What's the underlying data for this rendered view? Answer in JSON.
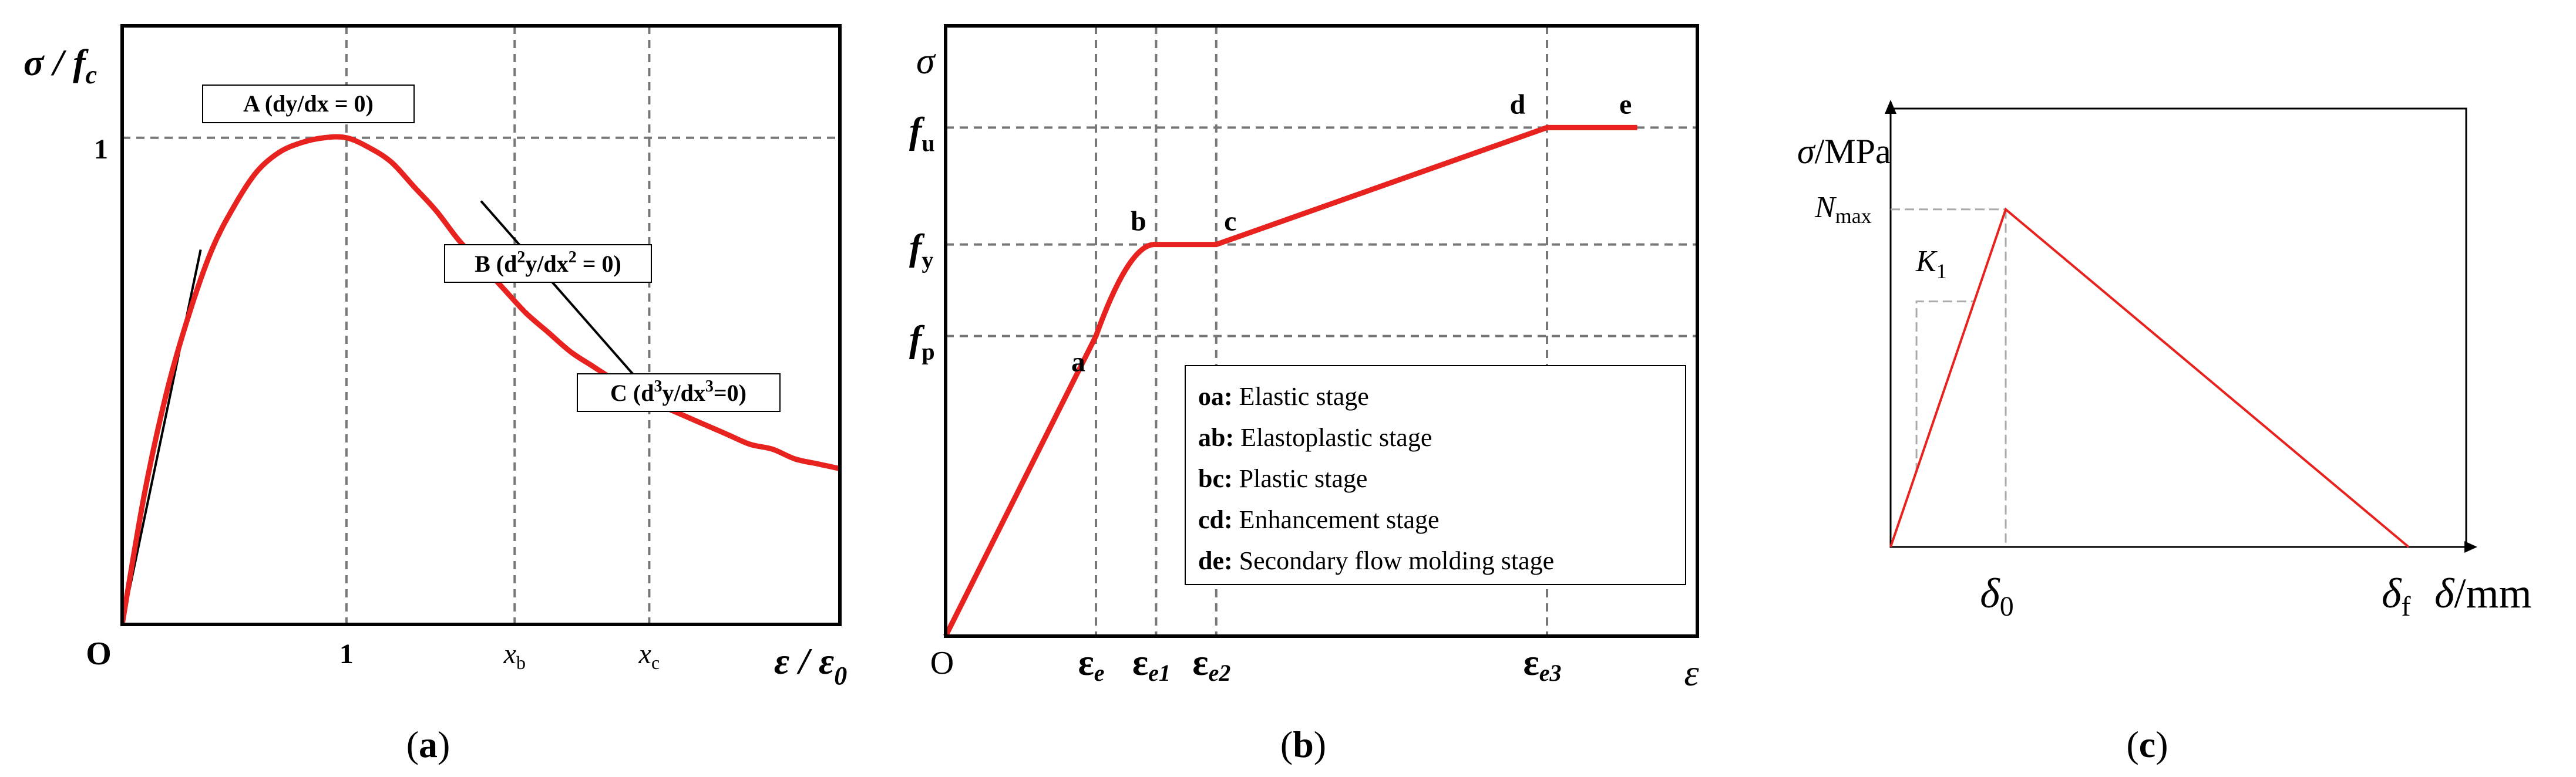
{
  "chart_data": [
    {
      "panel": "a",
      "type": "line",
      "caption": "(a)",
      "ylabel": "σ / f",
      "ylabel_sub": "c",
      "xlabel": "ε / ε",
      "xlabel_sub": "0",
      "origin_label": "O",
      "y_tick": "1",
      "x_ticks": [
        {
          "label": "1",
          "sub": "",
          "x": 1.0
        },
        {
          "label": "x",
          "sub": "b",
          "x": 1.75
        },
        {
          "label": "x",
          "sub": "c",
          "x": 2.35
        }
      ],
      "xlim": [
        0,
        3.2
      ],
      "ylim": [
        0,
        1.23
      ],
      "curve": {
        "x": [
          0,
          0.1,
          0.2,
          0.3,
          0.4,
          0.5,
          0.6,
          0.7,
          0.8,
          0.9,
          1.0,
          1.1,
          1.2,
          1.3,
          1.4,
          1.5,
          1.6,
          1.7,
          1.8,
          1.9,
          2.0,
          2.1,
          2.2,
          2.3,
          2.4,
          2.5,
          2.6,
          2.7,
          2.8,
          2.9,
          3.0,
          3.1,
          3.2
        ],
        "y": [
          0,
          0.27,
          0.48,
          0.64,
          0.77,
          0.86,
          0.93,
          0.97,
          0.99,
          1.0,
          1.0,
          0.98,
          0.95,
          0.9,
          0.85,
          0.79,
          0.74,
          0.69,
          0.64,
          0.6,
          0.56,
          0.53,
          0.5,
          0.47,
          0.45,
          0.43,
          0.41,
          0.39,
          0.37,
          0.36,
          0.34,
          0.33,
          0.32
        ]
      },
      "tangents": [
        {
          "x": [
            0,
            0.35
          ],
          "y": [
            0,
            0.77
          ]
        },
        {
          "x": [
            1.6,
            2.4
          ],
          "y": [
            0.87,
            0.45
          ]
        }
      ],
      "hlines": [
        1.0
      ],
      "vlines": [
        1.0,
        1.75,
        2.35
      ],
      "annotations": [
        {
          "main": "A (dy/dx = 0)",
          "x": 1.0,
          "y": 1.0
        },
        {
          "pre": "B (d",
          "sup": "2",
          "mid": "y/dx",
          "sup2": "2",
          "post": " = 0)",
          "x": 1.75,
          "y": 0.69
        },
        {
          "pre": "C (d",
          "sup": "3",
          "mid": "y/dx",
          "sup2": "3",
          "post": "=0)",
          "x": 2.35,
          "y": 0.47
        }
      ]
    },
    {
      "panel": "b",
      "type": "line",
      "caption": "(b)",
      "ylabel": "σ",
      "xlabel": "ε",
      "origin_label": "O",
      "y_ticks": [
        {
          "label": "f",
          "sub": "u",
          "y": 1.0
        },
        {
          "label": "f",
          "sub": "y",
          "y": 0.77
        },
        {
          "label": "f",
          "sub": "p",
          "y": 0.59
        }
      ],
      "x_ticks": [
        {
          "label": "ε",
          "sub": "e",
          "x": 0.2
        },
        {
          "label": "ε",
          "sub": "e1",
          "x": 0.28
        },
        {
          "label": "ε",
          "sub": "e2",
          "x": 0.36
        },
        {
          "label": "ε",
          "sub": "e3",
          "x": 0.8
        }
      ],
      "xlim": [
        0,
        1.0
      ],
      "ylim": [
        0,
        1.2
      ],
      "curve": {
        "x": [
          0,
          0.2,
          0.23,
          0.26,
          0.28,
          0.36,
          0.8,
          0.92
        ],
        "y": [
          0,
          0.59,
          0.7,
          0.76,
          0.77,
          0.77,
          1.0,
          1.0
        ]
      },
      "points": [
        {
          "label": "a",
          "x": 0.2,
          "y": 0.59
        },
        {
          "label": "b",
          "x": 0.28,
          "y": 0.77
        },
        {
          "label": "c",
          "x": 0.36,
          "y": 0.77
        },
        {
          "label": "d",
          "x": 0.8,
          "y": 1.0
        },
        {
          "label": "e",
          "x": 0.92,
          "y": 1.0
        }
      ],
      "legend": [
        {
          "key": "oa:",
          "text": " Elastic stage"
        },
        {
          "key": "ab:",
          "text": " Elastoplastic stage"
        },
        {
          "key": "bc:",
          "text": " Plastic stage"
        },
        {
          "key": "cd:",
          "text": " Enhancement stage"
        },
        {
          "key": "de:",
          "text": " Secondary flow molding stage"
        }
      ],
      "legend_position": "bottom-right"
    },
    {
      "panel": "c",
      "type": "line",
      "caption": "(c)",
      "ylabel": "σ",
      "ylabel_unit": "/MPa",
      "xlabel": "δ",
      "xlabel_unit": "/mm",
      "y_tick": {
        "label": "N",
        "sub": "max"
      },
      "x_ticks": [
        {
          "label": "δ",
          "sub": "0"
        },
        {
          "label": "δ",
          "sub": "f"
        }
      ],
      "slope_label": {
        "label": "K",
        "sub": "1"
      },
      "xlim": [
        0,
        1.0
      ],
      "ylim": [
        0,
        1.0
      ],
      "curve": {
        "x": [
          0,
          0.2,
          0.9
        ],
        "y": [
          0,
          0.77,
          0
        ]
      },
      "peak": {
        "x": 0.2,
        "y": 0.77
      }
    }
  ],
  "colors": {
    "curve": "#e8231f",
    "grid": "#777777",
    "frame": "#000000",
    "guide": "#aaaaaa"
  }
}
